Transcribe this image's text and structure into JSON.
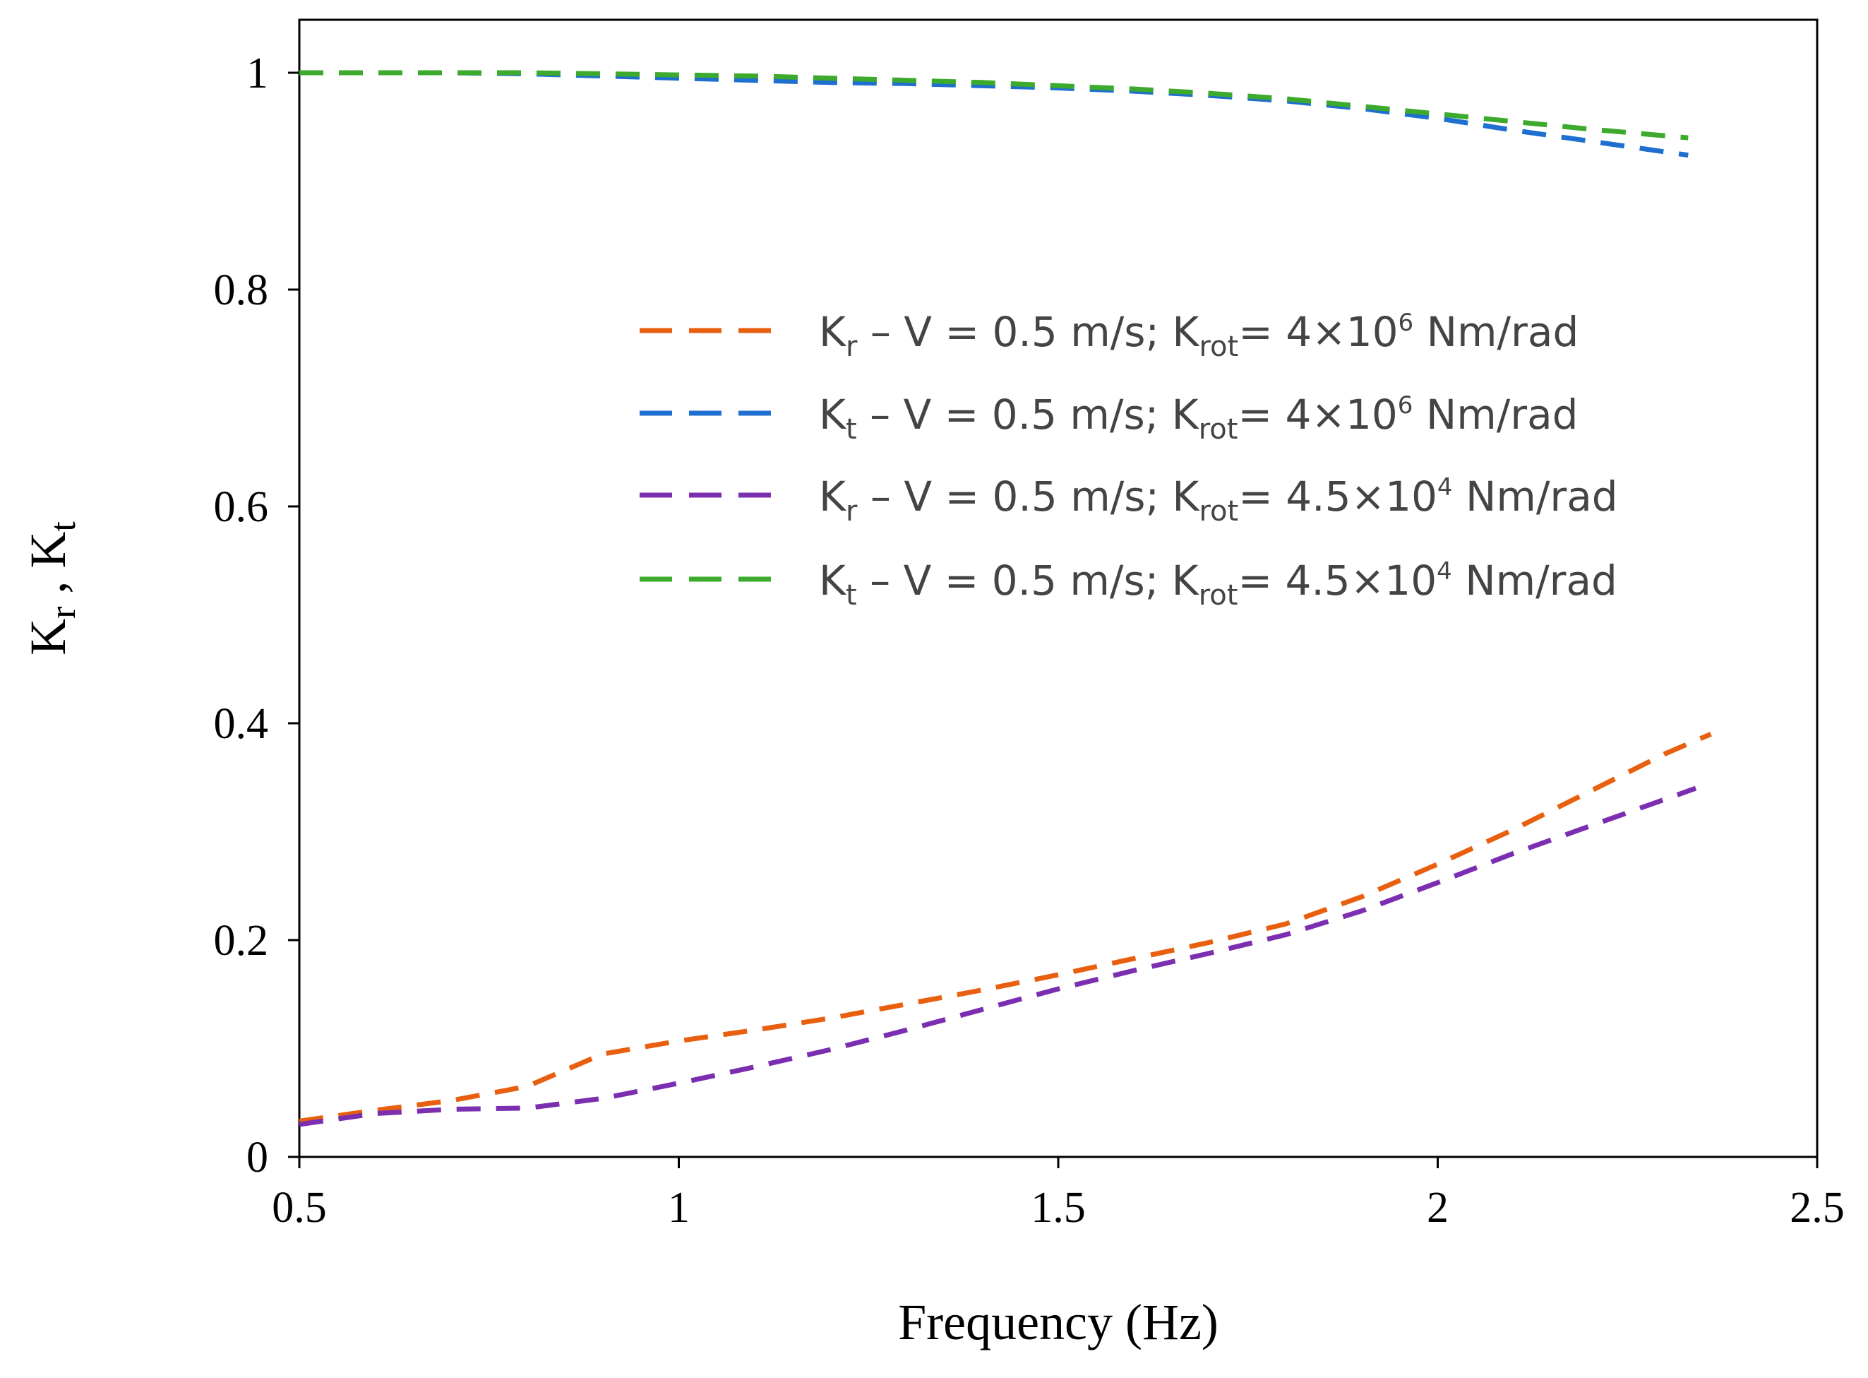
{
  "chart_data": {
    "type": "line",
    "title": "",
    "xlabel": "Frequency (Hz)",
    "ylabel": {
      "k": "K",
      "r_sub": "r",
      "sep": " , ",
      "t_sub": "t"
    },
    "xlim": [
      0.5,
      2.5
    ],
    "ylim": [
      0,
      1.05
    ],
    "x_ticks": [
      0.5,
      1,
      1.5,
      2,
      2.5
    ],
    "x_tick_labels": [
      "0.5",
      "1",
      "1.5",
      "2",
      "2.5"
    ],
    "y_ticks": [
      0,
      0.2,
      0.4,
      0.6,
      0.8,
      1
    ],
    "y_tick_labels": [
      "0",
      "0.2",
      "0.4",
      "0.6",
      "0.8",
      "1"
    ],
    "grid": false,
    "legend_position": "center-right",
    "series": [
      {
        "name": "Kr – V = 0.5 m/s; Krot= 4×10^6 Nm/rad",
        "legend": {
          "k": "K",
          "sub": "r",
          "mid": " – V = 0.5 m/s; K",
          "rot": "rot",
          "eq": "= 4×10",
          "sup": "6",
          "unit": " Nm/rad"
        },
        "color": "#E8600F",
        "x": [
          0.5,
          0.6,
          0.7,
          0.8,
          0.85,
          0.9,
          1.0,
          1.1,
          1.2,
          1.3,
          1.4,
          1.5,
          1.6,
          1.7,
          1.8,
          1.9,
          2.0,
          2.1,
          2.2,
          2.3,
          2.36
        ],
        "y": [
          0.033,
          0.043,
          0.052,
          0.065,
          0.08,
          0.095,
          0.107,
          0.117,
          0.128,
          0.141,
          0.154,
          0.168,
          0.183,
          0.198,
          0.215,
          0.24,
          0.27,
          0.302,
          0.337,
          0.372,
          0.39
        ]
      },
      {
        "name": "Kt – V = 0.5 m/s; Krot= 4×10^6 Nm/rad",
        "legend": {
          "k": "K",
          "sub": "t",
          "mid": " – V = 0.5 m/s; K",
          "rot": "rot",
          "eq": "= 4×10",
          "sup": "6",
          "unit": " Nm/rad"
        },
        "color": "#1F6FD1",
        "x": [
          0.5,
          0.6,
          0.7,
          0.8,
          0.9,
          1.0,
          1.1,
          1.2,
          1.3,
          1.4,
          1.5,
          1.6,
          1.7,
          1.8,
          1.9,
          2.0,
          2.1,
          2.2,
          2.33
        ],
        "y": [
          1.0,
          1.0,
          1.0,
          0.999,
          0.997,
          0.995,
          0.993,
          0.991,
          0.99,
          0.988,
          0.986,
          0.983,
          0.979,
          0.974,
          0.967,
          0.958,
          0.947,
          0.937,
          0.924
        ]
      },
      {
        "name": "Kr – V = 0.5 m/s; Krot= 4.5×10^4 Nm/rad",
        "legend": {
          "k": "K",
          "sub": "r",
          "mid": " – V = 0.5 m/s; K",
          "rot": "rot",
          "eq": "= 4.5×10",
          "sup": "4",
          "unit": " Nm/rad"
        },
        "color": "#7B2FB0",
        "x": [
          0.5,
          0.6,
          0.7,
          0.8,
          0.9,
          1.0,
          1.1,
          1.2,
          1.3,
          1.4,
          1.5,
          1.6,
          1.7,
          1.8,
          1.9,
          2.0,
          2.1,
          2.2,
          2.34
        ],
        "y": [
          0.03,
          0.04,
          0.044,
          0.045,
          0.054,
          0.068,
          0.083,
          0.099,
          0.117,
          0.136,
          0.155,
          0.172,
          0.188,
          0.205,
          0.227,
          0.253,
          0.28,
          0.305,
          0.34
        ]
      },
      {
        "name": "Kt – V = 0.5 m/s; Krot= 4.5×10^4 Nm/rad",
        "legend": {
          "k": "K",
          "sub": "t",
          "mid": " – V = 0.5 m/s; K",
          "rot": "rot",
          "eq": "= 4.5×10",
          "sup": "4",
          "unit": " Nm/rad"
        },
        "color": "#3CAA2C",
        "x": [
          0.5,
          0.6,
          0.7,
          0.8,
          0.9,
          1.0,
          1.1,
          1.2,
          1.3,
          1.4,
          1.5,
          1.6,
          1.7,
          1.8,
          1.9,
          2.0,
          2.1,
          2.2,
          2.33
        ],
        "y": [
          1.0,
          1.0,
          1.0,
          1.0,
          0.999,
          0.998,
          0.997,
          0.995,
          0.993,
          0.991,
          0.988,
          0.985,
          0.981,
          0.976,
          0.969,
          0.962,
          0.955,
          0.948,
          0.94
        ]
      }
    ]
  }
}
